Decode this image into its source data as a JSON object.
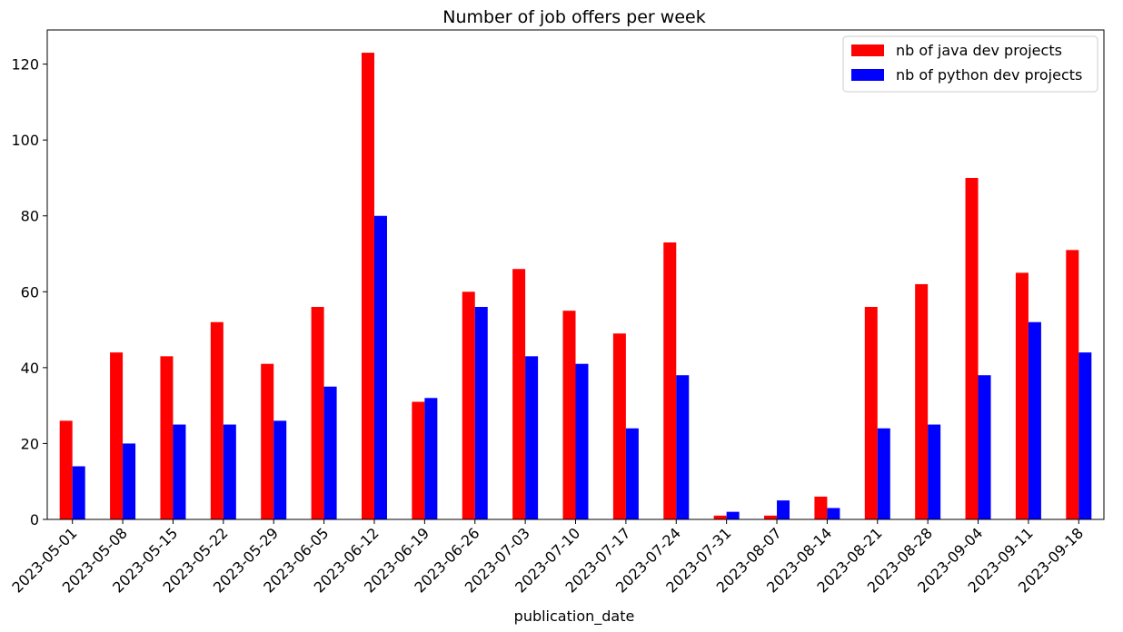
{
  "chart_data": {
    "type": "bar",
    "title": "Number of job offers per week",
    "xlabel": "publication_date",
    "ylabel": "",
    "ylim": [
      0,
      129
    ],
    "yticks": [
      0,
      20,
      40,
      60,
      80,
      100,
      120
    ],
    "grid": false,
    "legend_position": "top-right",
    "categories": [
      "2023-05-01",
      "2023-05-08",
      "2023-05-15",
      "2023-05-22",
      "2023-05-29",
      "2023-06-05",
      "2023-06-12",
      "2023-06-19",
      "2023-06-26",
      "2023-07-03",
      "2023-07-10",
      "2023-07-17",
      "2023-07-24",
      "2023-07-31",
      "2023-08-07",
      "2023-08-14",
      "2023-08-21",
      "2023-08-28",
      "2023-09-04",
      "2023-09-11",
      "2023-09-18"
    ],
    "series": [
      {
        "name": "nb of java dev projects",
        "color": "#ff0000",
        "values": [
          26,
          44,
          43,
          52,
          41,
          56,
          123,
          31,
          60,
          66,
          55,
          49,
          73,
          1,
          1,
          6,
          56,
          62,
          90,
          65,
          71
        ]
      },
      {
        "name": "nb of python dev projects",
        "color": "#0000ff",
        "values": [
          14,
          20,
          25,
          25,
          26,
          35,
          80,
          32,
          56,
          43,
          41,
          24,
          38,
          2,
          5,
          3,
          24,
          25,
          38,
          52,
          44
        ]
      }
    ]
  }
}
